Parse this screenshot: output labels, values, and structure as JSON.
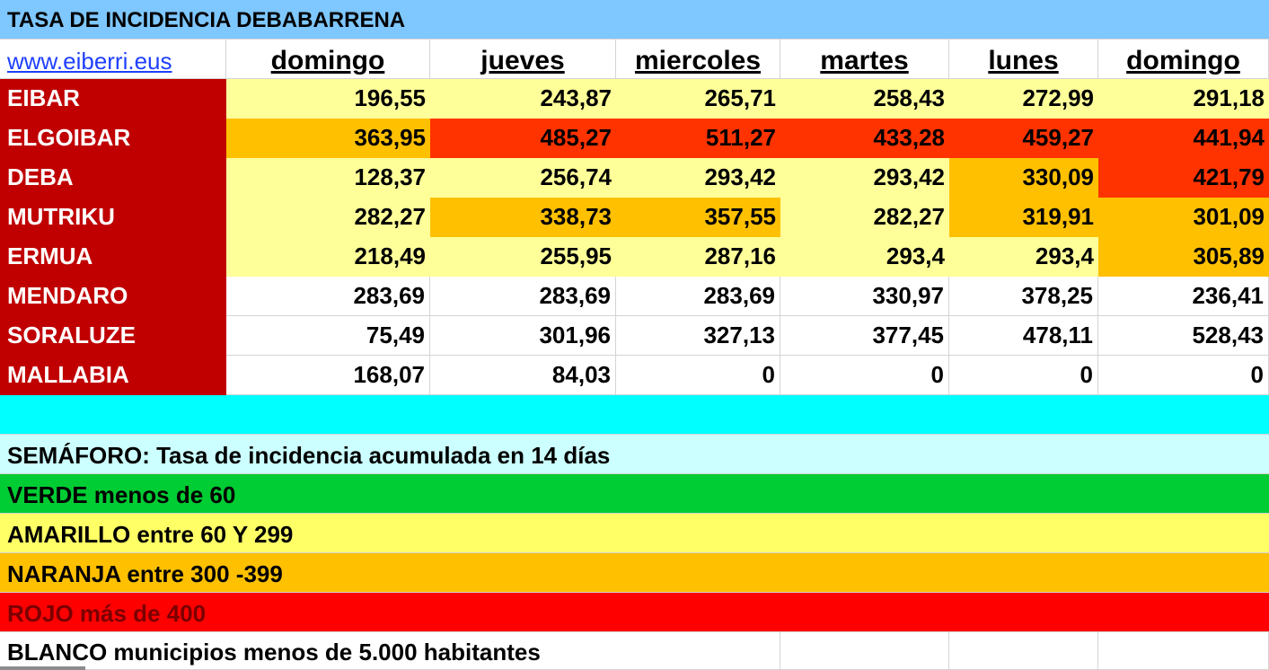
{
  "title": "TASA DE INCIDENCIA DEBABARRENA",
  "link": "www.eiberri.eus",
  "days": [
    "domingo",
    "jueves",
    "miercoles",
    "martes",
    "lunes",
    "domingo"
  ],
  "colors": {
    "light_yellow": "#ffff99",
    "orange": "#ffc000",
    "red_orange": "#ff3300",
    "white": "#ffffff",
    "name_red": "#c00000"
  },
  "rows": [
    {
      "name": "EIBAR",
      "values": [
        "196,55",
        "243,87",
        "265,71",
        "258,43",
        "272,99",
        "291,18"
      ],
      "levels": [
        "y",
        "y",
        "y",
        "y",
        "y",
        "y"
      ]
    },
    {
      "name": "ELGOIBAR",
      "values": [
        "363,95",
        "485,27",
        "511,27",
        "433,28",
        "459,27",
        "441,94"
      ],
      "levels": [
        "o",
        "r",
        "r",
        "r",
        "r",
        "r"
      ]
    },
    {
      "name": "DEBA",
      "values": [
        "128,37",
        "256,74",
        "293,42",
        "293,42",
        "330,09",
        "421,79"
      ],
      "levels": [
        "y",
        "y",
        "y",
        "y",
        "o",
        "r"
      ]
    },
    {
      "name": "MUTRIKU",
      "values": [
        "282,27",
        "338,73",
        "357,55",
        "282,27",
        "319,91",
        "301,09"
      ],
      "levels": [
        "y",
        "o",
        "o",
        "y",
        "o",
        "o"
      ]
    },
    {
      "name": "ERMUA",
      "values": [
        "218,49",
        "255,95",
        "287,16",
        "293,4",
        "293,4",
        "305,89"
      ],
      "levels": [
        "y",
        "y",
        "y",
        "y",
        "y",
        "o"
      ]
    },
    {
      "name": "MENDARO",
      "values": [
        "283,69",
        "283,69",
        "283,69",
        "330,97",
        "378,25",
        "236,41"
      ],
      "levels": [
        "w",
        "w",
        "w",
        "w",
        "w",
        "w"
      ]
    },
    {
      "name": "SORALUZE",
      "values": [
        "75,49",
        "301,96",
        "327,13",
        "377,45",
        "478,11",
        "528,43"
      ],
      "levels": [
        "w",
        "w",
        "w",
        "w",
        "w",
        "w"
      ]
    },
    {
      "name": "MALLABIA",
      "values": [
        "168,07",
        "84,03",
        "0",
        "0",
        "0",
        "0"
      ],
      "levels": [
        "w",
        "w",
        "w",
        "w",
        "w",
        "w"
      ]
    }
  ],
  "legend": {
    "semaforo": "SEMÁFORO:  Tasa de incidencia acumulada en 14 días",
    "verde": "VERDE menos de 60",
    "amarillo": "AMARILLO entre 60 Y 299",
    "naranja": "NARANJA entre 300 -399",
    "rojo": "ROJO más de 400",
    "blanco": "BLANCO municipios menos de 5.000 habitantes"
  }
}
